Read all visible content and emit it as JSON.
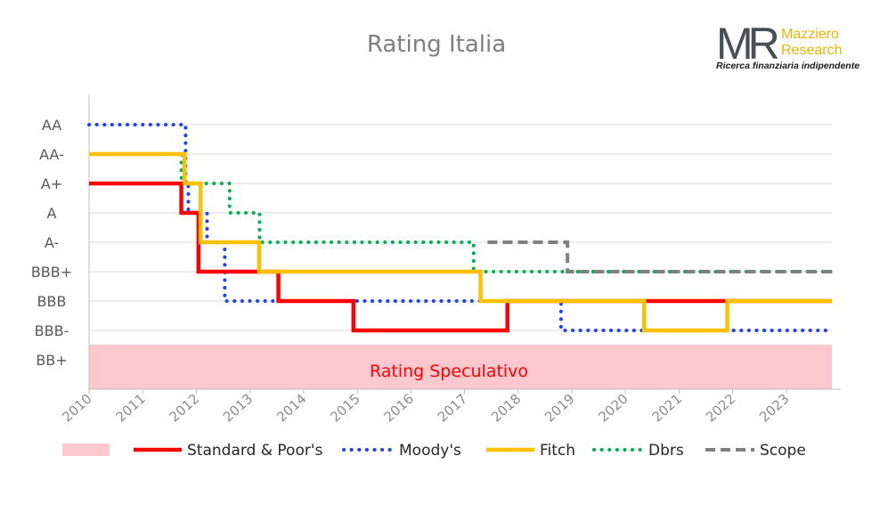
{
  "logo": {
    "mark": "MR",
    "name_line1": "Mazziero",
    "name_line2": "Research",
    "tagline": "Ricerca finanziaria indipendente"
  },
  "chart_data": {
    "type": "line",
    "title": "Rating Italia",
    "x_ticks": [
      "2010",
      "2011",
      "2012",
      "2013",
      "2014",
      "2015",
      "2016",
      "2017",
      "2018",
      "2019",
      "2020",
      "2021",
      "2022",
      "2023"
    ],
    "xlim": [
      2010,
      2023.85
    ],
    "y_ticks": [
      "AA",
      "AA-",
      "A+",
      "A",
      "A-",
      "BBB+",
      "BBB",
      "BBB-",
      "BB+"
    ],
    "grid": true,
    "speculative_band": {
      "label": "Rating Speculativo",
      "from_rating": "BB+",
      "color": "#ffc7ce",
      "label_color": "#ff0000"
    },
    "step_interpolation": "step-after",
    "series": [
      {
        "name": "Standard & Poor's",
        "color": "#ff0000",
        "style": "solid",
        "points": [
          [
            2010,
            "A+"
          ],
          [
            2011.72,
            "A"
          ],
          [
            2012.04,
            "BBB+"
          ],
          [
            2013.53,
            "BBB"
          ],
          [
            2014.93,
            "BBB-"
          ],
          [
            2017.8,
            "BBB"
          ],
          [
            2023.85,
            "BBB"
          ]
        ]
      },
      {
        "name": "Moody's",
        "color": "#1f3fff",
        "style": "dotted",
        "points": [
          [
            2010,
            "AA"
          ],
          [
            2011.8,
            "A+"
          ],
          [
            2011.85,
            "A"
          ],
          [
            2012.2,
            "A-"
          ],
          [
            2012.53,
            "BBB"
          ],
          [
            2018.8,
            "BBB-"
          ],
          [
            2023.85,
            "BBB-"
          ]
        ]
      },
      {
        "name": "Fitch",
        "color": "#ffc000",
        "style": "solid",
        "points": [
          [
            2010,
            "AA-"
          ],
          [
            2011.78,
            "A+"
          ],
          [
            2012.08,
            "A-"
          ],
          [
            2013.17,
            "BBB+"
          ],
          [
            2017.3,
            "BBB"
          ],
          [
            2020.35,
            "BBB-"
          ],
          [
            2021.9,
            "BBB"
          ],
          [
            2023.85,
            "BBB"
          ]
        ]
      },
      {
        "name": "Dbrs",
        "color": "#00b050",
        "style": "dotted",
        "points": [
          [
            2011.02,
            "AA-"
          ],
          [
            2011.72,
            "A+"
          ],
          [
            2012.62,
            "A"
          ],
          [
            2013.18,
            "A-"
          ],
          [
            2017.17,
            "BBB+"
          ],
          [
            2023.85,
            "BBB+"
          ]
        ]
      },
      {
        "name": "Scope",
        "color": "#7f7f7f",
        "style": "dashed",
        "points": [
          [
            2017.43,
            "A-"
          ],
          [
            2018.92,
            "BBB+"
          ],
          [
            2023.85,
            "BBB+"
          ]
        ]
      }
    ],
    "legend_position": "bottom"
  }
}
